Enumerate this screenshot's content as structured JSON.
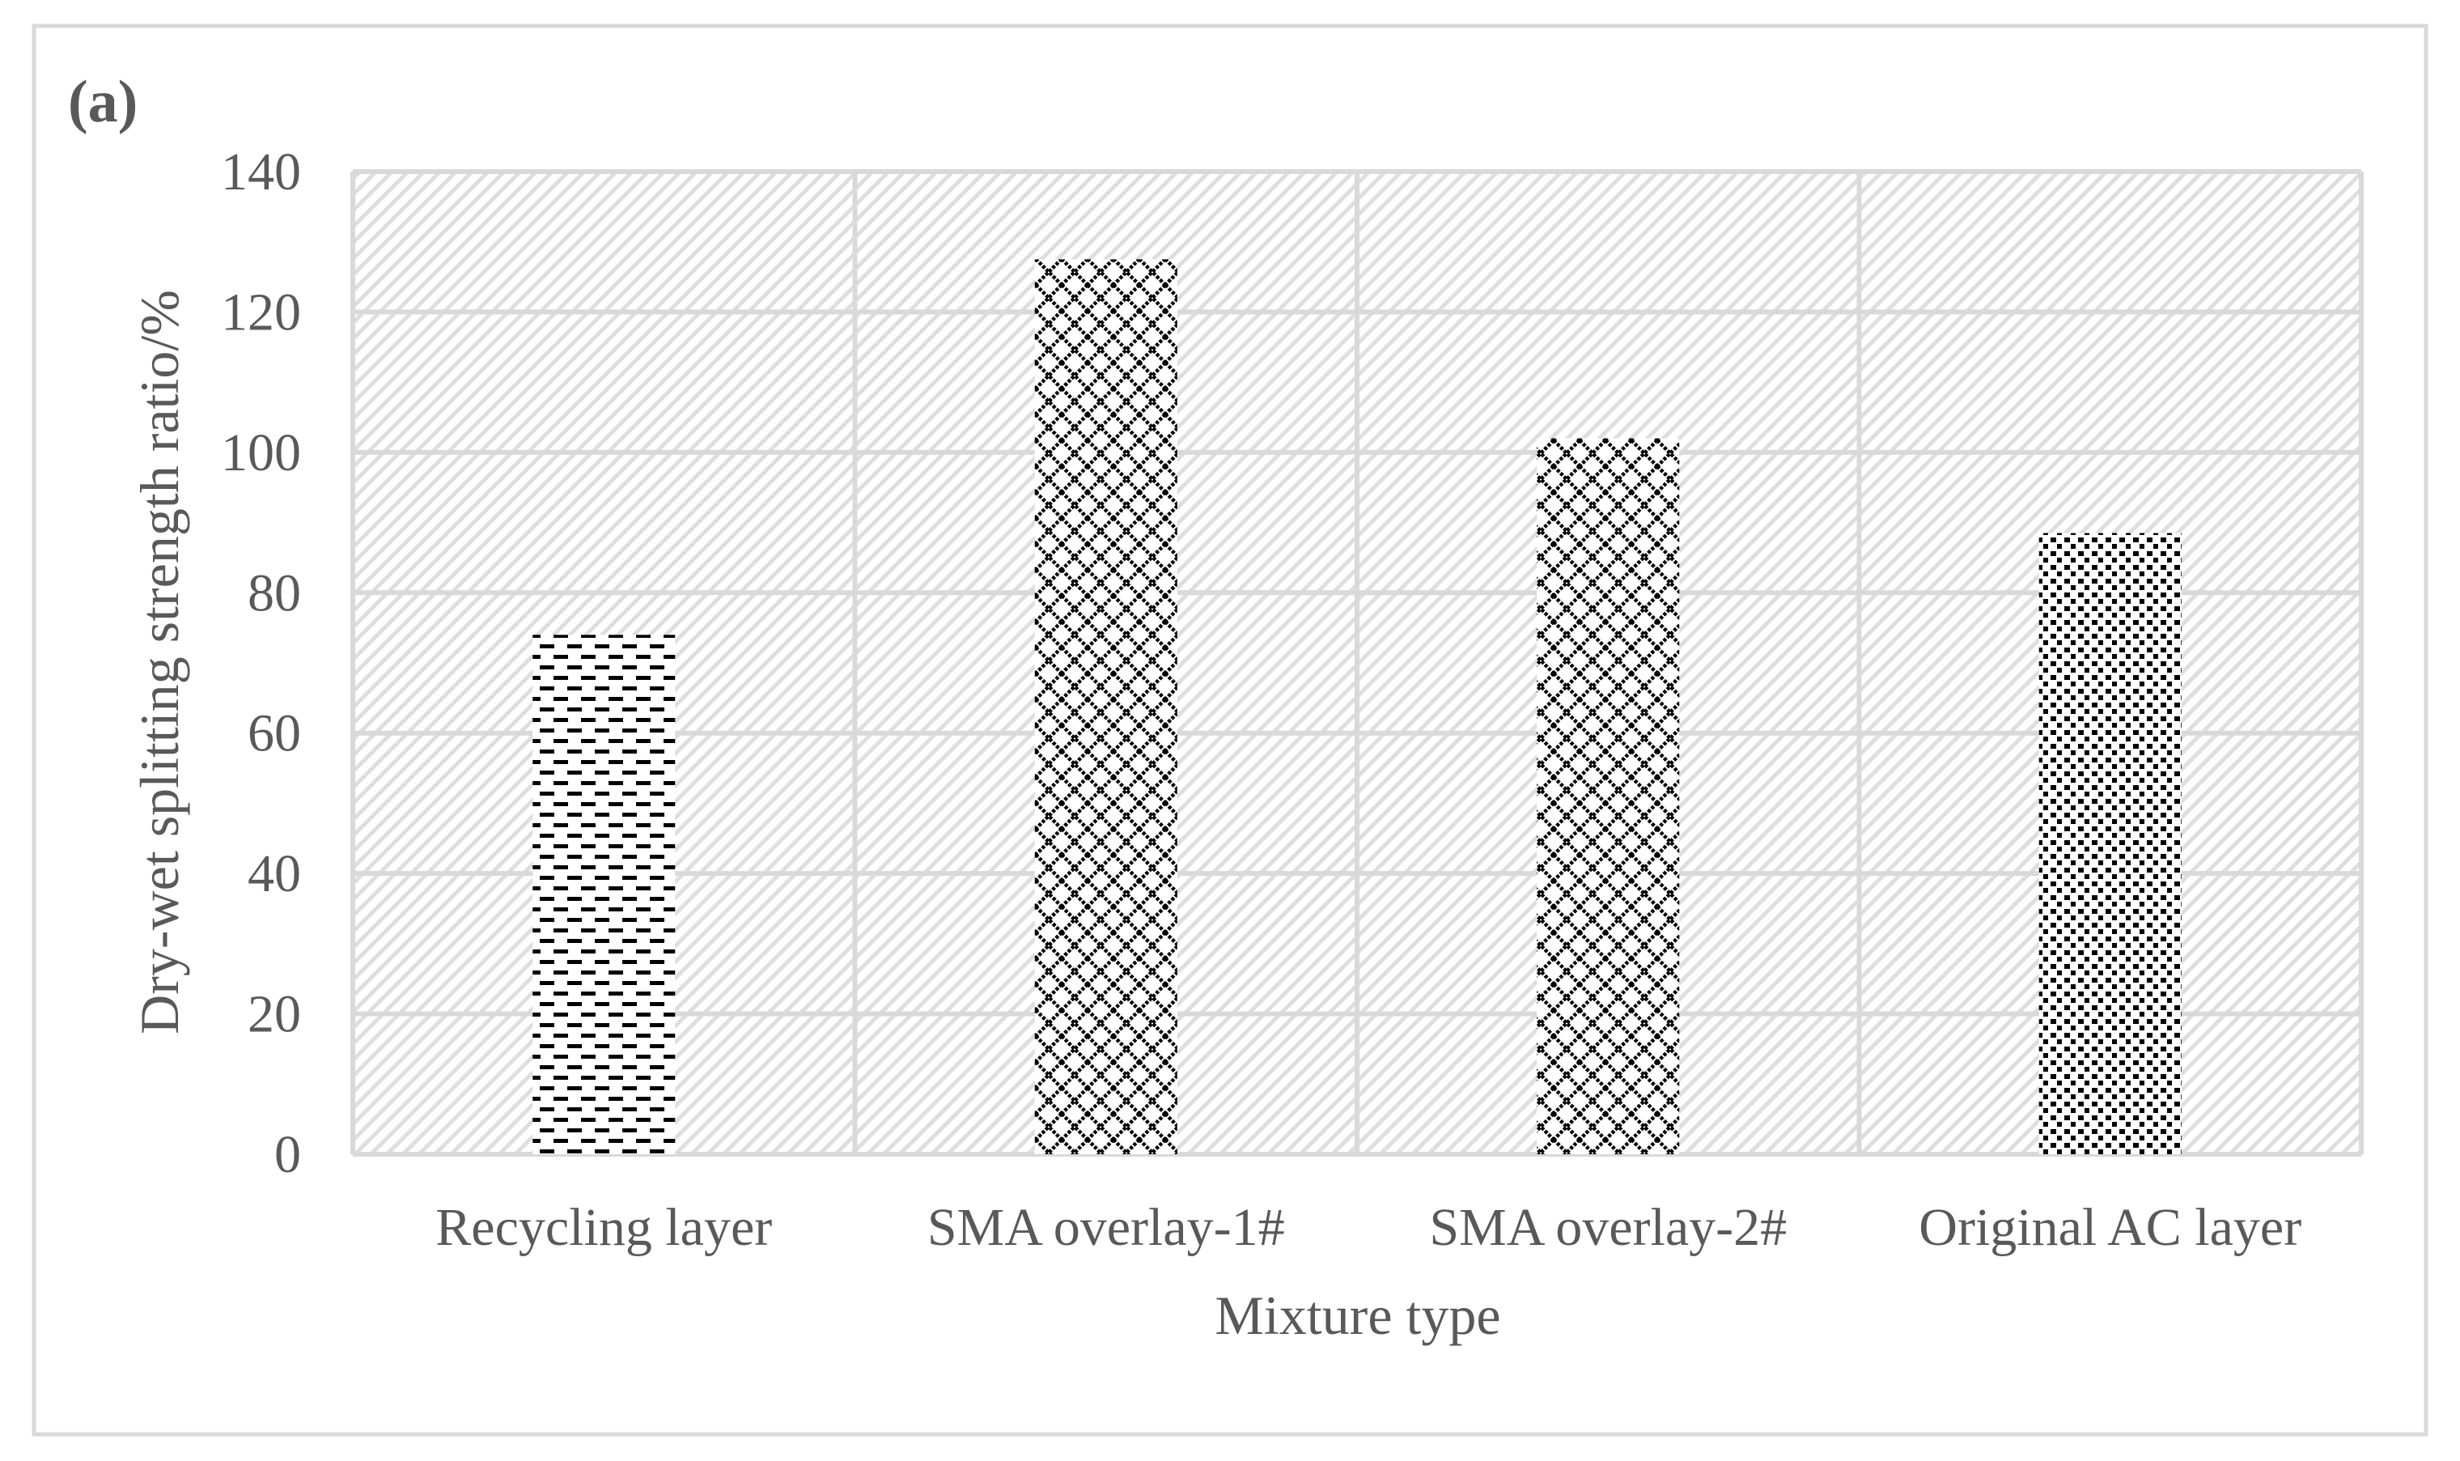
{
  "panel_label": "(a)",
  "chart_data": {
    "type": "bar",
    "title": "",
    "xlabel": "Mixture type",
    "ylabel": "Dry-wet splitting strength ratio/%",
    "categories": [
      "Recycling layer",
      "SMA overlay-1#",
      "SMA overlay-2#",
      "Original AC layer"
    ],
    "values": [
      74,
      127.5,
      102,
      88.5
    ],
    "bar_patterns": [
      "dashes",
      "diamond-lattice",
      "diamond-lattice",
      "dotted-grid"
    ],
    "ylim": [
      0,
      140
    ],
    "yticks": [
      0,
      20,
      40,
      60,
      80,
      100,
      120,
      140
    ],
    "grid": true,
    "legend": "none",
    "colors": {
      "text": "#595959",
      "gridline": "#d9d9d9",
      "plot_hatch": "#d9d9d9",
      "bar_pattern": "#000000",
      "frame": "#d9d9d9"
    }
  }
}
